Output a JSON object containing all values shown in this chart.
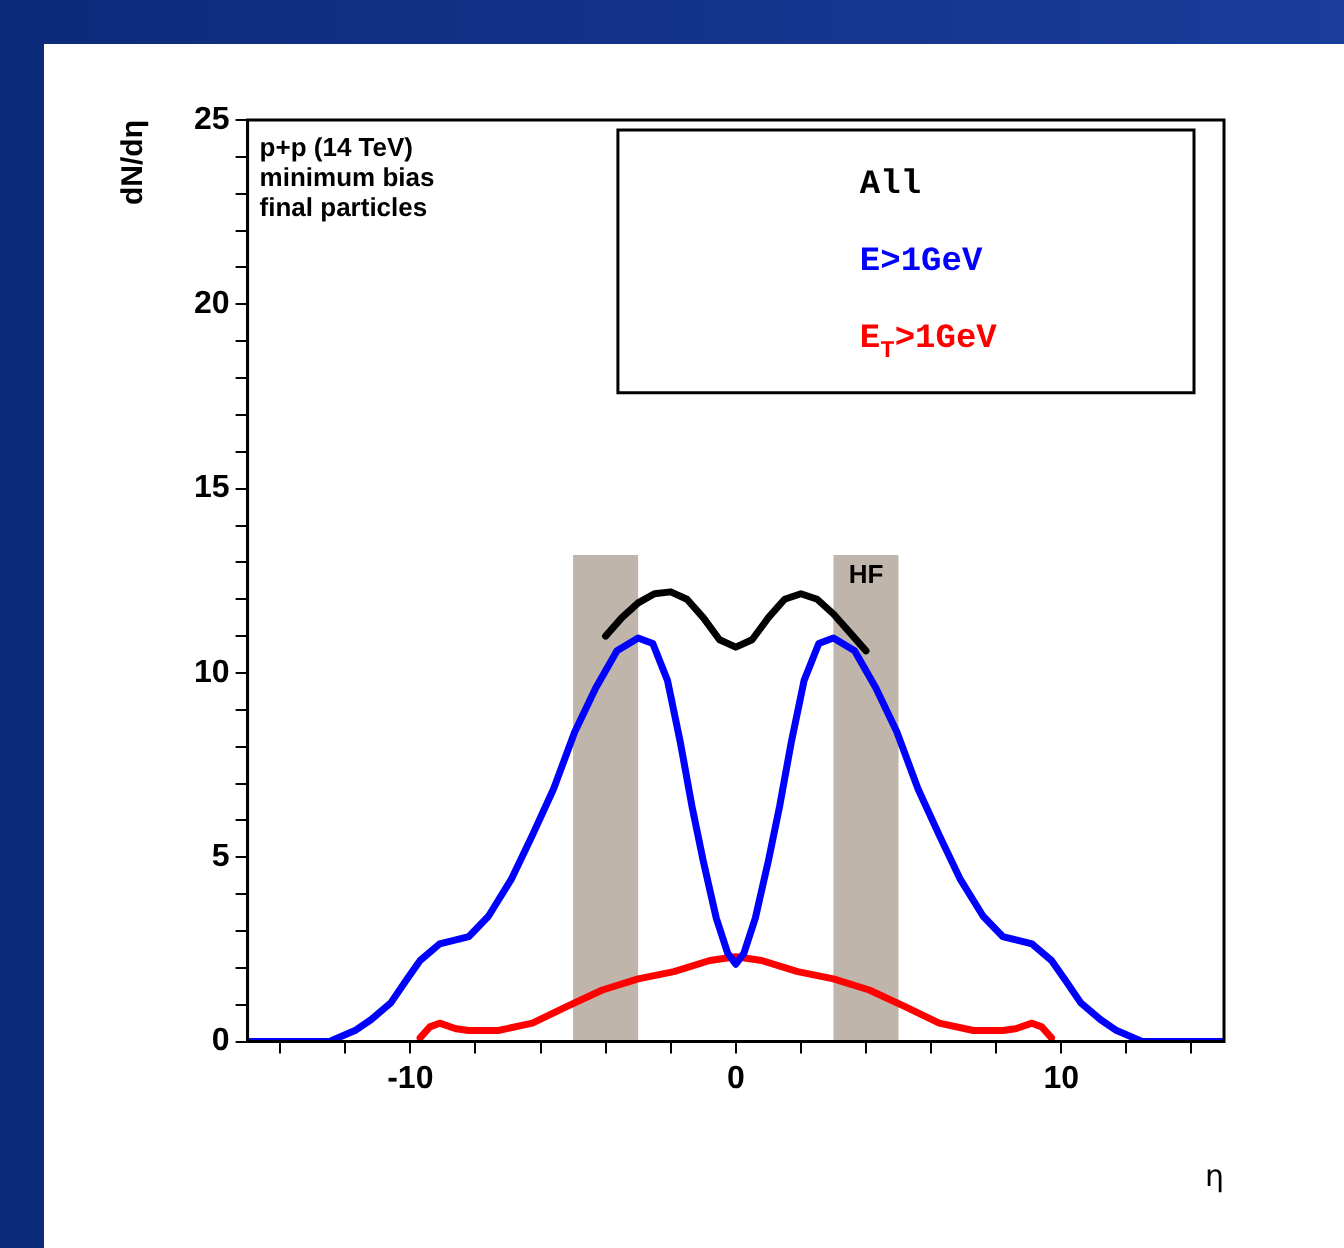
{
  "chart_data": {
    "type": "line",
    "xlabel": "η",
    "ylabel": "dN/dη",
    "xlim": [
      -15,
      15
    ],
    "ylim": [
      0,
      25
    ],
    "xticks": [
      {
        "value": -14,
        "label": null
      },
      {
        "value": -12,
        "label": null
      },
      -10,
      {
        "value": -8,
        "label": null
      },
      {
        "value": -6,
        "label": null
      },
      {
        "value": -4,
        "label": null
      },
      {
        "value": -2,
        "label": null
      },
      0,
      {
        "value": 2,
        "label": null
      },
      {
        "value": 4,
        "label": null
      },
      {
        "value": 6,
        "label": null
      },
      {
        "value": 8,
        "label": null
      },
      10,
      {
        "value": 12,
        "label": null
      },
      {
        "value": 14,
        "label": null
      }
    ],
    "yticks": [
      0,
      {
        "value": 1,
        "label": null
      },
      {
        "value": 2,
        "label": null
      },
      {
        "value": 3,
        "label": null
      },
      {
        "value": 4,
        "label": null
      },
      5,
      {
        "value": 6,
        "label": null
      },
      {
        "value": 7,
        "label": null
      },
      {
        "value": 8,
        "label": null
      },
      {
        "value": 9,
        "label": null
      },
      10,
      {
        "value": 11,
        "label": null
      },
      {
        "value": 12,
        "label": null
      },
      {
        "value": 13,
        "label": null
      },
      {
        "value": 14,
        "label": null
      },
      15,
      {
        "value": 16,
        "label": null
      },
      {
        "value": 17,
        "label": null
      },
      {
        "value": 18,
        "label": null
      },
      {
        "value": 19,
        "label": null
      },
      20,
      {
        "value": 21,
        "label": null
      },
      {
        "value": 22,
        "label": null
      },
      {
        "value": 23,
        "label": null
      },
      {
        "value": 24,
        "label": null
      },
      25
    ],
    "grid": false,
    "legend": "top right",
    "marker": "none",
    "line_style": "solid",
    "annotations": [
      "p+p (14 TeV)",
      "minimum bias",
      "final particles"
    ],
    "bands": [
      {
        "axis": "x",
        "from": -5,
        "to": -3,
        "color": "#bfb5aa"
      },
      {
        "axis": "x",
        "from": 3,
        "to": 5,
        "label": "HF",
        "color": "#bfb5aa"
      }
    ],
    "series": [
      {
        "name": "All",
        "color": "#000000",
        "x": [
          -4,
          -3.5,
          -3,
          -2.5,
          -2,
          -1.5,
          -1,
          -0.5,
          0,
          0.5,
          1,
          1.5,
          2,
          2.5,
          3,
          3.5,
          4
        ],
        "values": [
          11.0,
          11.5,
          11.9,
          12.15,
          12.2,
          12.0,
          11.5,
          10.9,
          10.7,
          10.9,
          11.5,
          12.0,
          12.15,
          12.0,
          11.6,
          11.1,
          10.6
        ]
      },
      {
        "name": "E>1GeV",
        "color": "#0000ff",
        "x": [
          -15,
          -12.5,
          -11.7,
          -11.2,
          -10.6,
          -10.1,
          -9.7,
          -9.1,
          -8.2,
          -7.6,
          -6.9,
          -6.25,
          -5.6,
          -4.95,
          -4.3,
          -3.65,
          -3,
          -2.55,
          -2.1,
          -1.7,
          -1.35,
          -1,
          -0.6,
          -0.25,
          0,
          0.25,
          0.6,
          1,
          1.35,
          1.7,
          2.1,
          2.55,
          3,
          3.65,
          4.3,
          4.95,
          5.6,
          6.25,
          6.9,
          7.6,
          8.2,
          9.1,
          9.7,
          10.1,
          10.6,
          11.2,
          11.7,
          12.5,
          15
        ],
        "values": [
          0,
          0,
          0.3,
          0.6,
          1.05,
          1.7,
          2.2,
          2.65,
          2.85,
          3.4,
          4.4,
          5.6,
          6.85,
          8.4,
          9.6,
          10.6,
          10.95,
          10.8,
          9.8,
          8.1,
          6.4,
          4.9,
          3.35,
          2.4,
          2.1,
          2.4,
          3.35,
          4.9,
          6.4,
          8.1,
          9.8,
          10.8,
          10.95,
          10.6,
          9.6,
          8.4,
          6.85,
          5.6,
          4.4,
          3.4,
          2.85,
          2.65,
          2.2,
          1.7,
          1.05,
          0.6,
          0.3,
          0,
          0
        ]
      },
      {
        "name": "E$_{T}$>1GeV",
        "color": "#ff0000",
        "x": [
          -9.7,
          -9.4,
          -9.1,
          -8.6,
          -8.2,
          -7.3,
          -6.25,
          -5.2,
          -4.1,
          -3,
          -1.9,
          -0.8,
          0,
          0.8,
          1.9,
          3,
          4.1,
          5.2,
          6.25,
          7.3,
          8.2,
          8.6,
          9.1,
          9.4,
          9.7
        ],
        "values": [
          0.1,
          0.4,
          0.5,
          0.35,
          0.3,
          0.3,
          0.5,
          0.95,
          1.4,
          1.7,
          1.9,
          2.2,
          2.3,
          2.2,
          1.9,
          1.7,
          1.4,
          0.95,
          0.5,
          0.3,
          0.3,
          0.35,
          0.5,
          0.4,
          0.1
        ]
      }
    ]
  }
}
